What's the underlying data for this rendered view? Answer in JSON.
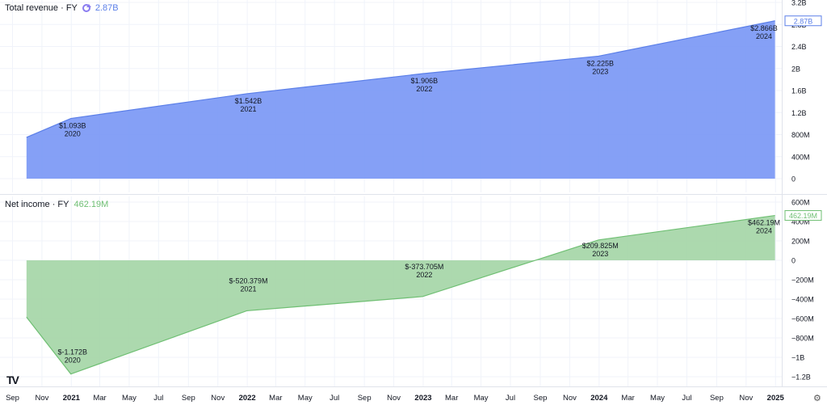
{
  "panes": {
    "revenue": {
      "title": "Total revenue · FY",
      "current": "2.87B"
    },
    "net_income": {
      "title": "Net income · FY",
      "current": "462.19M"
    }
  },
  "colors": {
    "revenue_fill": "#7b98f5",
    "revenue_line": "#5b7fe8",
    "net_income_fill": "#a5d6a7",
    "net_income_line": "#6fbf73"
  },
  "icons": {
    "refresh": "refresh-icon",
    "logo": "tradingview-logo",
    "settings": "gear-icon"
  },
  "logo_text": "TV",
  "settings_glyph": "⚙",
  "chart_data": [
    {
      "type": "area",
      "x": [
        "2020-09-30",
        "2020-12-31",
        "2021-12-31",
        "2022-12-31",
        "2023-12-31",
        "2024-12-31"
      ],
      "values": [
        0.75,
        1.093,
        1.542,
        1.906,
        2.225,
        2.866
      ],
      "unit": "B",
      "points": [
        {
          "label": "$1.093B",
          "year": "2020"
        },
        {
          "label": "$1.542B",
          "year": "2021"
        },
        {
          "label": "$1.906B",
          "year": "2022"
        },
        {
          "label": "$2.225B",
          "year": "2023"
        },
        {
          "label": "$2.866B",
          "year": "2024"
        }
      ],
      "yticks": [
        "3.2B",
        "2.8B",
        "2.4B",
        "2B",
        "1.6B",
        "1.2B",
        "800M",
        "400M",
        "0"
      ],
      "ytick_values": [
        3.2,
        2.8,
        2.4,
        2.0,
        1.6,
        1.2,
        0.8,
        0.4,
        0
      ],
      "ylim": [
        0,
        3.2
      ],
      "current_label": "2.87B",
      "grid": true
    },
    {
      "type": "area",
      "x": [
        "2020-09-30",
        "2020-12-31",
        "2021-12-31",
        "2022-12-31",
        "2023-12-31",
        "2024-12-31"
      ],
      "values": [
        -585,
        -1172,
        -520.379,
        -373.705,
        209.825,
        462.19
      ],
      "unit": "M",
      "points": [
        {
          "label": "$-1.172B",
          "year": "2020"
        },
        {
          "label": "$-520.379M",
          "year": "2021"
        },
        {
          "label": "$-373.705M",
          "year": "2022"
        },
        {
          "label": "$209.825M",
          "year": "2023"
        },
        {
          "label": "$462.19M",
          "year": "2024"
        }
      ],
      "yticks": [
        "600M",
        "400M",
        "200M",
        "0",
        "−200M",
        "−400M",
        "−600M",
        "−800M",
        "−1B",
        "−1.2B"
      ],
      "ytick_values": [
        600,
        400,
        200,
        0,
        -200,
        -400,
        -600,
        -800,
        -1000,
        -1200
      ],
      "ylim": [
        -1200,
        600
      ],
      "current_label": "462.19M",
      "grid": true
    }
  ],
  "x_axis": {
    "ticks": [
      {
        "label": "Sep",
        "date": "2020-09-01"
      },
      {
        "label": "Nov",
        "date": "2020-11-01"
      },
      {
        "label": "2021",
        "date": "2021-01-01",
        "bold": true
      },
      {
        "label": "Mar",
        "date": "2021-03-01"
      },
      {
        "label": "May",
        "date": "2021-05-01"
      },
      {
        "label": "Jul",
        "date": "2021-07-01"
      },
      {
        "label": "Sep",
        "date": "2021-09-01"
      },
      {
        "label": "Nov",
        "date": "2021-11-01"
      },
      {
        "label": "2022",
        "date": "2022-01-01",
        "bold": true
      },
      {
        "label": "Mar",
        "date": "2022-03-01"
      },
      {
        "label": "May",
        "date": "2022-05-01"
      },
      {
        "label": "Jul",
        "date": "2022-07-01"
      },
      {
        "label": "Sep",
        "date": "2022-09-01"
      },
      {
        "label": "Nov",
        "date": "2022-11-01"
      },
      {
        "label": "2023",
        "date": "2023-01-01",
        "bold": true
      },
      {
        "label": "Mar",
        "date": "2023-03-01"
      },
      {
        "label": "May",
        "date": "2023-05-01"
      },
      {
        "label": "Jul",
        "date": "2023-07-01"
      },
      {
        "label": "Sep",
        "date": "2023-09-01"
      },
      {
        "label": "Nov",
        "date": "2023-11-01"
      },
      {
        "label": "2024",
        "date": "2024-01-01",
        "bold": true
      },
      {
        "label": "Mar",
        "date": "2024-03-01"
      },
      {
        "label": "May",
        "date": "2024-05-01"
      },
      {
        "label": "Jul",
        "date": "2024-07-01"
      },
      {
        "label": "Sep",
        "date": "2024-09-01"
      },
      {
        "label": "Nov",
        "date": "2024-11-01"
      },
      {
        "label": "2025",
        "date": "2025-01-01",
        "bold": true
      }
    ]
  }
}
